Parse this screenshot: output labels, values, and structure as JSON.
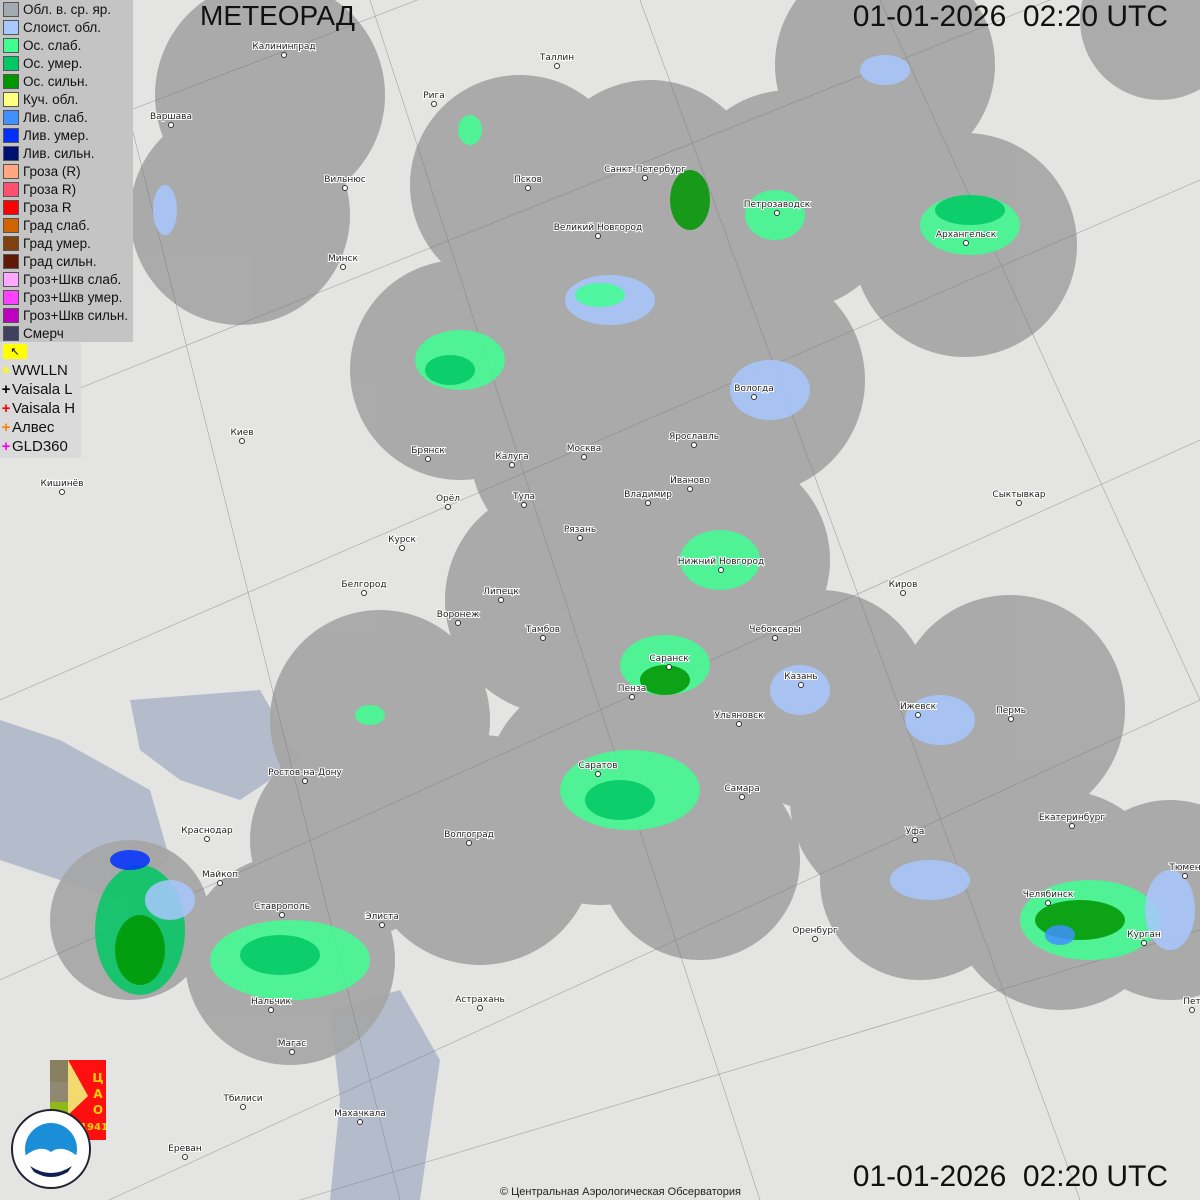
{
  "header": {
    "title": "МЕТЕОРАД",
    "timestamp": "01-01-2026  02:20 UTC"
  },
  "legend": {
    "items": [
      {
        "label": "Обл. в. ср. яр.",
        "color": "#a0aab0"
      },
      {
        "label": "Слоист. обл.",
        "color": "#a8c8ff"
      },
      {
        "label": "Ос. слаб.",
        "color": "#40ff90"
      },
      {
        "label": "Ос. умер.",
        "color": "#00c864"
      },
      {
        "label": "Ос. сильн.",
        "color": "#009600"
      },
      {
        "label": "Куч. обл.",
        "color": "#ffff80"
      },
      {
        "label": "Лив. слаб.",
        "color": "#4090ff"
      },
      {
        "label": "Лив. умер.",
        "color": "#0030ff"
      },
      {
        "label": "Лив. сильн.",
        "color": "#001070"
      },
      {
        "label": "Гроза (R)",
        "color": "#ffa880"
      },
      {
        "label": "Гроза R)",
        "color": "#ff5070"
      },
      {
        "label": "Гроза R",
        "color": "#ff0000"
      },
      {
        "label": "Град слаб.",
        "color": "#d06400"
      },
      {
        "label": "Град умер.",
        "color": "#804010"
      },
      {
        "label": "Град сильн.",
        "color": "#601808"
      },
      {
        "label": "Гроз+Шкв слаб.",
        "color": "#ffa8ff"
      },
      {
        "label": "Гроз+Шкв умер.",
        "color": "#ff40ff"
      },
      {
        "label": "Гроз+Шкв сильн.",
        "color": "#c000c0"
      },
      {
        "label": "Смерч",
        "color": "#404060"
      }
    ],
    "lightning": [
      {
        "label": "WWLLN",
        "color": "#ffff00"
      },
      {
        "label": "Vaisala L",
        "color": "#000000"
      },
      {
        "label": "Vaisala H",
        "color": "#ff0000"
      },
      {
        "label": "Алвес",
        "color": "#ff8000"
      },
      {
        "label": "GLD360",
        "color": "#ff00ff"
      }
    ]
  },
  "cities": [
    "Калининград",
    "Таллин",
    "Рига",
    "Варшава",
    "Вильнюс",
    "Псков",
    "Санкт-Петербург",
    "Петрозаводск",
    "Архангельск",
    "Великий Новгород",
    "Минск",
    "Вологда",
    "Ярославль",
    "Киев",
    "Брянск",
    "Калуга",
    "Москва",
    "Иваново",
    "Кишинёв",
    "Орёл",
    "Тула",
    "Владимир",
    "Сыктывкар",
    "Курск",
    "Рязань",
    "Нижний Новгород",
    "Белгород",
    "Липецк",
    "Киров",
    "Воронеж",
    "Тамбов",
    "Чебоксары",
    "Саранск",
    "Казань",
    "Пенза",
    "Ижевск",
    "Пермь",
    "Ульяновск",
    "Ростов-на-Дону",
    "Саратов",
    "Самара",
    "Краснодар",
    "Волгоград",
    "Уфа",
    "Екатеринбург",
    "Майкоп",
    "Челябинск",
    "Тюмен",
    "Ставрополь",
    "Элиста",
    "Оренбург",
    "Курган",
    "Астрахань",
    "Нальчик",
    "Пет",
    "Магас",
    "Тбилиси",
    "Махачкала",
    "Ереван"
  ],
  "logos": {
    "cao": "ЦАО 1941",
    "roshydromet": "РОСГИДРОМЕТ ROSHYDROMET"
  },
  "footer": {
    "copyright": "© Центральная Аэрологическая Обсерватория"
  },
  "colors": {
    "background": "#e4e4e2",
    "radar_coverage": "#a6a6a6"
  }
}
